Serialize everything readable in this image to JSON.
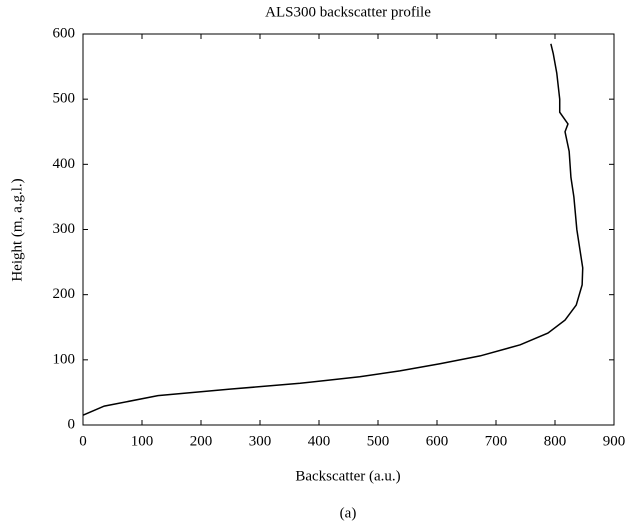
{
  "chart_data": {
    "type": "line",
    "title": "ALS300 backscatter profile",
    "x_label": "Backscatter (a.u.)",
    "y_label": "Height (m, a.g.l.)",
    "caption": "(a)",
    "x": [
      0,
      36,
      127,
      249,
      368,
      469,
      537,
      605,
      673,
      741,
      788,
      817,
      836,
      846,
      847,
      837,
      832,
      827,
      824,
      817,
      822,
      808,
      808,
      803,
      797,
      793
    ],
    "series": [
      {
        "color": "#000000",
        "values": [
          15,
          29,
          45,
          55,
          64,
          74,
          83,
          94,
          106,
          123,
          141,
          161,
          184,
          215,
          241,
          300,
          350,
          380,
          420,
          450,
          462,
          480,
          500,
          540,
          570,
          585
        ]
      }
    ],
    "xlim": [
      0,
      900
    ],
    "ylim": [
      0,
      600
    ],
    "xticks": [
      0,
      100,
      200,
      300,
      400,
      500,
      600,
      700,
      800,
      900
    ],
    "yticks": [
      0,
      100,
      200,
      300,
      400,
      500,
      600
    ],
    "grid": false
  }
}
